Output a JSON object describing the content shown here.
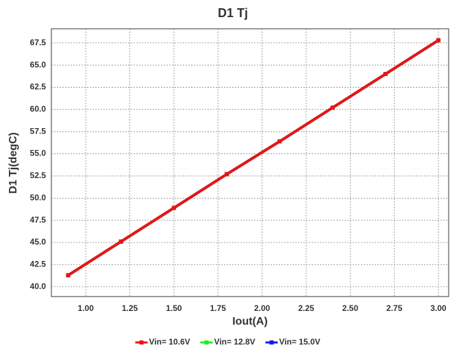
{
  "chart_data": {
    "type": "line",
    "title": "D1 Tj",
    "x_label": "Iout(A)",
    "y_label": "D1 Tj(degC)",
    "x": [
      0.9,
      1.2,
      1.5,
      1.8,
      2.1,
      2.4,
      2.7,
      3.0
    ],
    "series": [
      {
        "name": "Vin= 10.6V",
        "color": "#e8141a",
        "values": [
          41.3,
          45.1,
          48.9,
          52.7,
          56.4,
          60.2,
          64.0,
          67.8
        ]
      },
      {
        "name": "Vin= 12.8V",
        "color": "#22ee22",
        "values": [
          41.3,
          45.1,
          48.9,
          52.7,
          56.4,
          60.2,
          64.0,
          67.8
        ]
      },
      {
        "name": "Vin= 15.0V",
        "color": "#1a1ae0",
        "values": [
          41.3,
          45.1,
          48.9,
          52.7,
          56.4,
          60.2,
          64.0,
          67.8
        ]
      }
    ],
    "xlim": [
      0.805,
      3.058
    ],
    "xticks": [
      {
        "value": 1,
        "label": "1.00"
      },
      1.25,
      {
        "value": 1.5,
        "label": "1.50"
      },
      1.75,
      {
        "value": 2,
        "label": "2.00"
      },
      2.25,
      {
        "value": 2.5,
        "label": "2.50"
      },
      2.75,
      {
        "value": 3,
        "label": "3.00"
      }
    ],
    "ylim": [
      38.9,
      69.1
    ],
    "yticks": [
      {
        "value": 40,
        "label": "40.0"
      },
      42.5,
      {
        "value": 45,
        "label": "45.0"
      },
      47.5,
      {
        "value": 50,
        "label": "50.0"
      },
      52.5,
      {
        "value": 55,
        "label": "55.0"
      },
      57.5,
      {
        "value": 60,
        "label": "60.0"
      },
      62.5,
      {
        "value": 65,
        "label": "65.0"
      },
      67.5
    ],
    "grid": true
  }
}
